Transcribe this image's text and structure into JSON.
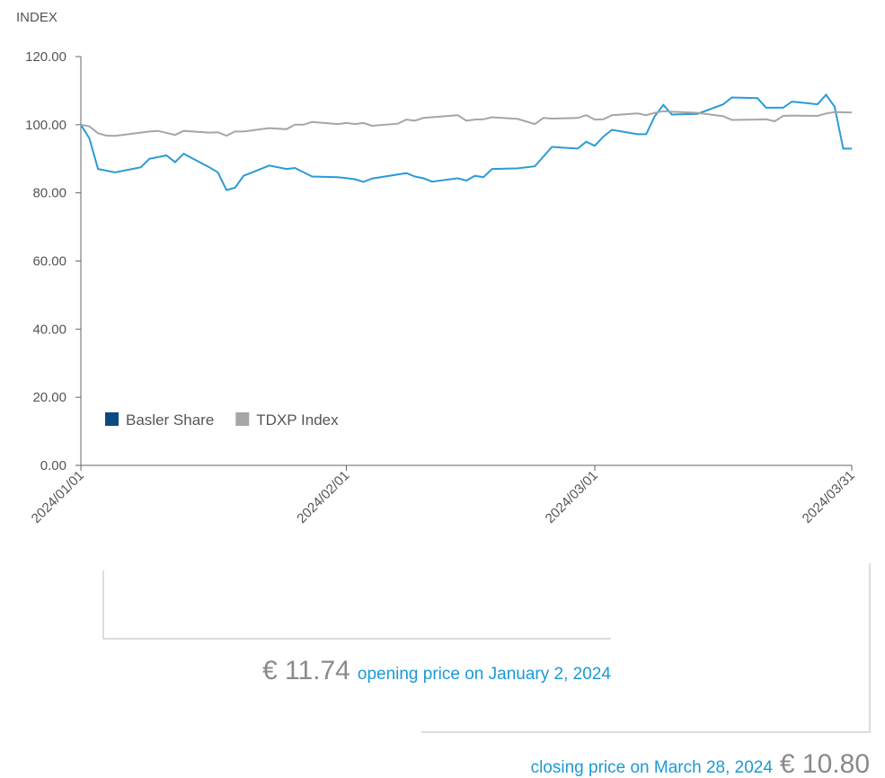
{
  "chart_data": {
    "type": "line",
    "ylabel": "INDEX",
    "xlim": [
      "2024-01-01",
      "2024-03-31"
    ],
    "xticks": [
      {
        "value": "2024-01-01",
        "label": "2024/01/01"
      },
      {
        "value": "2024-02-01",
        "label": "2024/02/01"
      },
      {
        "value": "2024-03-01",
        "label": "2024/03/01"
      },
      {
        "value": "2024-03-31",
        "label": "2024/03/31"
      }
    ],
    "ylim": [
      0,
      120
    ],
    "yticks": [
      {
        "value": 0,
        "label": "0.00"
      },
      {
        "value": 20,
        "label": "20.00"
      },
      {
        "value": 40,
        "label": "40.00"
      },
      {
        "value": 60,
        "label": "60.00"
      },
      {
        "value": 80,
        "label": "80.00"
      },
      {
        "value": 100,
        "label": "100.00"
      },
      {
        "value": 120,
        "label": "120.00"
      }
    ],
    "legend": "lower left",
    "series": [
      {
        "name": "Basler Share",
        "color": "#2a9bd6",
        "legend_color": "#0b4a80",
        "x": [
          "2024-01-01",
          "2024-01-02",
          "2024-01-03",
          "2024-01-05",
          "2024-01-08",
          "2024-01-09",
          "2024-01-11",
          "2024-01-12",
          "2024-01-13",
          "2024-01-16",
          "2024-01-17",
          "2024-01-18",
          "2024-01-19",
          "2024-01-20",
          "2024-01-23",
          "2024-01-25",
          "2024-01-26",
          "2024-01-28",
          "2024-01-31",
          "2024-02-02",
          "2024-02-03",
          "2024-02-04",
          "2024-02-08",
          "2024-02-09",
          "2024-02-10",
          "2024-02-11",
          "2024-02-14",
          "2024-02-15",
          "2024-02-16",
          "2024-02-17",
          "2024-02-18",
          "2024-02-21",
          "2024-02-23",
          "2024-02-25",
          "2024-02-28",
          "2024-02-29",
          "2024-03-01",
          "2024-03-02",
          "2024-03-03",
          "2024-03-06",
          "2024-03-07",
          "2024-03-08",
          "2024-03-09",
          "2024-03-10",
          "2024-03-13",
          "2024-03-16",
          "2024-03-17",
          "2024-03-20",
          "2024-03-21",
          "2024-03-23",
          "2024-03-24",
          "2024-03-27",
          "2024-03-28",
          "2024-03-29",
          "2024-03-30",
          "2024-03-31"
        ],
        "values": [
          100,
          96,
          87,
          86,
          87.5,
          90,
          91,
          89,
          91.5,
          87.5,
          86,
          80.8,
          81.5,
          85,
          88,
          87,
          87.3,
          84.8,
          84.6,
          84,
          83.2,
          84.2,
          85.8,
          84.8,
          84.3,
          83.3,
          84.3,
          83.6,
          85,
          84.6,
          87,
          87.2,
          87.8,
          93.5,
          93,
          95,
          93.8,
          96.5,
          98.5,
          97.2,
          97.2,
          102.5,
          105.8,
          103,
          103.2,
          106,
          108,
          107.8,
          105,
          105,
          106.8,
          106,
          108.8,
          105.3,
          93,
          93
        ]
      },
      {
        "name": "TDXP Index",
        "color": "#a6a6a6",
        "legend_color": "#a6a6a6",
        "x": [
          "2024-01-01",
          "2024-01-02",
          "2024-01-03",
          "2024-01-04",
          "2024-01-05",
          "2024-01-09",
          "2024-01-10",
          "2024-01-12",
          "2024-01-13",
          "2024-01-16",
          "2024-01-17",
          "2024-01-18",
          "2024-01-19",
          "2024-01-20",
          "2024-01-23",
          "2024-01-25",
          "2024-01-26",
          "2024-01-27",
          "2024-01-28",
          "2024-01-31",
          "2024-02-01",
          "2024-02-02",
          "2024-02-03",
          "2024-02-04",
          "2024-02-07",
          "2024-02-08",
          "2024-02-09",
          "2024-02-10",
          "2024-02-14",
          "2024-02-15",
          "2024-02-16",
          "2024-02-17",
          "2024-02-18",
          "2024-02-21",
          "2024-02-23",
          "2024-02-24",
          "2024-02-25",
          "2024-02-28",
          "2024-02-29",
          "2024-03-01",
          "2024-03-02",
          "2024-03-03",
          "2024-03-06",
          "2024-03-07",
          "2024-03-08",
          "2024-03-09",
          "2024-03-10",
          "2024-03-13",
          "2024-03-16",
          "2024-03-17",
          "2024-03-20",
          "2024-03-21",
          "2024-03-22",
          "2024-03-23",
          "2024-03-24",
          "2024-03-27",
          "2024-03-28",
          "2024-03-29",
          "2024-03-31"
        ],
        "values": [
          100,
          99.5,
          97.5,
          96.8,
          96.7,
          98,
          98.2,
          97,
          98.2,
          97.7,
          97.8,
          96.8,
          98,
          98,
          99,
          98.7,
          100,
          100,
          100.8,
          100.2,
          100.5,
          100.2,
          100.5,
          99.7,
          100.3,
          101.5,
          101.2,
          102,
          102.8,
          101.2,
          101.5,
          101.6,
          102.2,
          101.7,
          100.2,
          102,
          101.8,
          102,
          102.8,
          101.5,
          101.6,
          102.8,
          103.3,
          102.8,
          103.5,
          104,
          103.8,
          103.5,
          102.5,
          101.4,
          101.5,
          101.6,
          101,
          102.6,
          102.7,
          102.6,
          103.3,
          103.7,
          103.6
        ]
      }
    ],
    "annotations": [
      {
        "price": "€ 11.74",
        "text": "opening price on January 2, 2024"
      },
      {
        "text": "closing price on March 28, 2024",
        "price": "€ 10.80"
      }
    ]
  }
}
